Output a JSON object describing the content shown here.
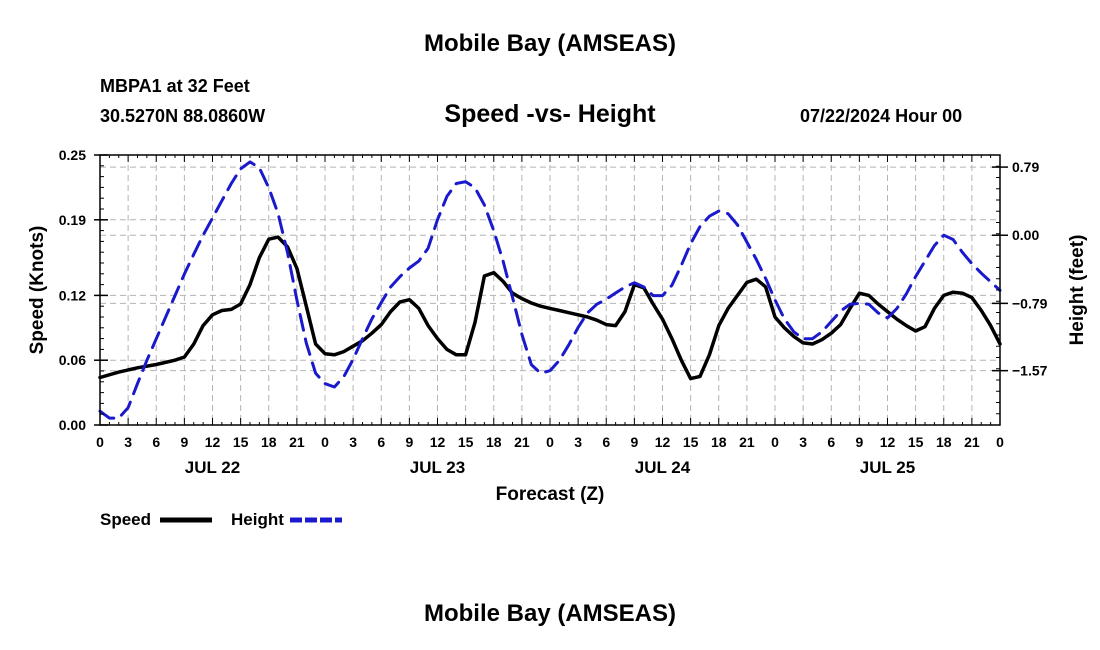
{
  "header": {
    "title": "Mobile Bay (AMSEAS)",
    "station": "MBPA1 at 32 Feet",
    "coords": "30.5270N  88.0860W",
    "subtitle": "Speed -vs- Height",
    "datetime": "07/22/2024 Hour 00"
  },
  "footer": {
    "title": "Mobile Bay (AMSEAS)"
  },
  "chart_data": {
    "type": "line",
    "title": "Speed -vs- Height",
    "xlabel": "Forecast (Z)",
    "ylabel": "Speed (Knots)",
    "y2label": "Height (feet)",
    "xlim": [
      0,
      96
    ],
    "ylim": [
      0,
      0.25
    ],
    "y2lim": [
      -2.2,
      0.93
    ],
    "grid": true,
    "x_ticks": [
      0,
      3,
      6,
      9,
      12,
      15,
      18,
      21,
      24,
      27,
      30,
      33,
      36,
      39,
      42,
      45,
      48,
      51,
      54,
      57,
      60,
      63,
      66,
      69,
      72,
      75,
      78,
      81,
      84,
      87,
      90,
      93,
      96
    ],
    "x_tick_labels": [
      "0",
      "3",
      "6",
      "9",
      "12",
      "15",
      "18",
      "21",
      "0",
      "3",
      "6",
      "9",
      "12",
      "15",
      "18",
      "21",
      "0",
      "3",
      "6",
      "9",
      "12",
      "15",
      "18",
      "21",
      "0",
      "3",
      "6",
      "9",
      "12",
      "15",
      "18",
      "21",
      "0"
    ],
    "date_labels": [
      {
        "hour": 12,
        "label": "JUL 22"
      },
      {
        "hour": 36,
        "label": "JUL 23"
      },
      {
        "hour": 60,
        "label": "JUL 24"
      },
      {
        "hour": 84,
        "label": "JUL 25"
      }
    ],
    "y_ticks": [
      0.0,
      0.06,
      0.12,
      0.19,
      0.25
    ],
    "y_tick_labels": [
      "0.00",
      "0.06",
      "0.12",
      "0.19",
      "0.25"
    ],
    "y2_ticks": [
      0.79,
      0.0,
      -0.79,
      -1.57
    ],
    "y2_tick_labels": [
      "0.79",
      "0.00",
      "−0.79",
      "−1.57"
    ],
    "legend": [
      {
        "name": "Speed",
        "color": "#000000",
        "style": "solid"
      },
      {
        "name": "Height",
        "color": "#1a1acc",
        "style": "dashed"
      }
    ],
    "series": [
      {
        "name": "Speed",
        "axis": "left",
        "color": "#000000",
        "points": [
          [
            0,
            0.044
          ],
          [
            2,
            0.049
          ],
          [
            4,
            0.053
          ],
          [
            6,
            0.056
          ],
          [
            8,
            0.06
          ],
          [
            9,
            0.063
          ],
          [
            10,
            0.075
          ],
          [
            11,
            0.092
          ],
          [
            12,
            0.102
          ],
          [
            13,
            0.106
          ],
          [
            14,
            0.107
          ],
          [
            15,
            0.112
          ],
          [
            16,
            0.13
          ],
          [
            17,
            0.155
          ],
          [
            18,
            0.172
          ],
          [
            19,
            0.174
          ],
          [
            20,
            0.165
          ],
          [
            21,
            0.145
          ],
          [
            22,
            0.11
          ],
          [
            23,
            0.075
          ],
          [
            24,
            0.066
          ],
          [
            25,
            0.065
          ],
          [
            26,
            0.068
          ],
          [
            27,
            0.073
          ],
          [
            28,
            0.078
          ],
          [
            29,
            0.085
          ],
          [
            30,
            0.093
          ],
          [
            31,
            0.105
          ],
          [
            32,
            0.114
          ],
          [
            33,
            0.116
          ],
          [
            34,
            0.108
          ],
          [
            35,
            0.092
          ],
          [
            36,
            0.08
          ],
          [
            37,
            0.07
          ],
          [
            38,
            0.065
          ],
          [
            39,
            0.065
          ],
          [
            40,
            0.095
          ],
          [
            41,
            0.138
          ],
          [
            42,
            0.141
          ],
          [
            43,
            0.133
          ],
          [
            44,
            0.122
          ],
          [
            45,
            0.117
          ],
          [
            46,
            0.113
          ],
          [
            47,
            0.11
          ],
          [
            48,
            0.108
          ],
          [
            49,
            0.106
          ],
          [
            50,
            0.104
          ],
          [
            51,
            0.102
          ],
          [
            52,
            0.1
          ],
          [
            53,
            0.097
          ],
          [
            54,
            0.093
          ],
          [
            55,
            0.092
          ],
          [
            56,
            0.105
          ],
          [
            57,
            0.13
          ],
          [
            58,
            0.127
          ],
          [
            59,
            0.112
          ],
          [
            60,
            0.098
          ],
          [
            61,
            0.08
          ],
          [
            62,
            0.06
          ],
          [
            63,
            0.043
          ],
          [
            64,
            0.045
          ],
          [
            65,
            0.065
          ],
          [
            66,
            0.092
          ],
          [
            67,
            0.108
          ],
          [
            68,
            0.12
          ],
          [
            69,
            0.132
          ],
          [
            70,
            0.135
          ],
          [
            71,
            0.128
          ],
          [
            72,
            0.1
          ],
          [
            73,
            0.09
          ],
          [
            74,
            0.082
          ],
          [
            75,
            0.076
          ],
          [
            76,
            0.075
          ],
          [
            77,
            0.079
          ],
          [
            78,
            0.085
          ],
          [
            79,
            0.093
          ],
          [
            80,
            0.108
          ],
          [
            81,
            0.122
          ],
          [
            82,
            0.12
          ],
          [
            83,
            0.112
          ],
          [
            84,
            0.105
          ],
          [
            85,
            0.098
          ],
          [
            86,
            0.092
          ],
          [
            87,
            0.087
          ],
          [
            88,
            0.091
          ],
          [
            89,
            0.108
          ],
          [
            90,
            0.12
          ],
          [
            91,
            0.123
          ],
          [
            92,
            0.122
          ],
          [
            93,
            0.118
          ],
          [
            94,
            0.106
          ],
          [
            95,
            0.092
          ],
          [
            96,
            0.075
          ]
        ]
      },
      {
        "name": "Height",
        "axis": "right",
        "color": "#1a1acc",
        "points": [
          [
            0,
            -2.04
          ],
          [
            1,
            -2.12
          ],
          [
            2,
            -2.12
          ],
          [
            3,
            -2.0
          ],
          [
            4,
            -1.72
          ],
          [
            5,
            -1.45
          ],
          [
            6,
            -1.2
          ],
          [
            7,
            -0.95
          ],
          [
            8,
            -0.7
          ],
          [
            9,
            -0.45
          ],
          [
            10,
            -0.22
          ],
          [
            11,
            0.0
          ],
          [
            12,
            0.2
          ],
          [
            13,
            0.4
          ],
          [
            14,
            0.6
          ],
          [
            15,
            0.77
          ],
          [
            16,
            0.85
          ],
          [
            17,
            0.78
          ],
          [
            18,
            0.55
          ],
          [
            19,
            0.25
          ],
          [
            20,
            -0.2
          ],
          [
            21,
            -0.75
          ],
          [
            22,
            -1.25
          ],
          [
            23,
            -1.6
          ],
          [
            24,
            -1.72
          ],
          [
            25,
            -1.76
          ],
          [
            26,
            -1.64
          ],
          [
            27,
            -1.44
          ],
          [
            28,
            -1.2
          ],
          [
            29,
            -0.97
          ],
          [
            30,
            -0.78
          ],
          [
            31,
            -0.6
          ],
          [
            32,
            -0.48
          ],
          [
            33,
            -0.38
          ],
          [
            34,
            -0.3
          ],
          [
            35,
            -0.15
          ],
          [
            36,
            0.18
          ],
          [
            37,
            0.45
          ],
          [
            38,
            0.6
          ],
          [
            39,
            0.62
          ],
          [
            40,
            0.55
          ],
          [
            41,
            0.35
          ],
          [
            42,
            0.05
          ],
          [
            43,
            -0.3
          ],
          [
            44,
            -0.72
          ],
          [
            45,
            -1.15
          ],
          [
            46,
            -1.5
          ],
          [
            47,
            -1.6
          ],
          [
            48,
            -1.57
          ],
          [
            49,
            -1.45
          ],
          [
            50,
            -1.27
          ],
          [
            51,
            -1.07
          ],
          [
            52,
            -0.9
          ],
          [
            53,
            -0.8
          ],
          [
            54,
            -0.74
          ],
          [
            55,
            -0.67
          ],
          [
            56,
            -0.6
          ],
          [
            57,
            -0.55
          ],
          [
            58,
            -0.6
          ],
          [
            59,
            -0.7
          ],
          [
            60,
            -0.7
          ],
          [
            61,
            -0.58
          ],
          [
            62,
            -0.35
          ],
          [
            63,
            -0.1
          ],
          [
            64,
            0.1
          ],
          [
            65,
            0.22
          ],
          [
            66,
            0.28
          ],
          [
            67,
            0.25
          ],
          [
            68,
            0.12
          ],
          [
            69,
            -0.08
          ],
          [
            70,
            -0.28
          ],
          [
            71,
            -0.5
          ],
          [
            72,
            -0.75
          ],
          [
            73,
            -0.97
          ],
          [
            74,
            -1.12
          ],
          [
            75,
            -1.2
          ],
          [
            76,
            -1.2
          ],
          [
            77,
            -1.12
          ],
          [
            78,
            -1.0
          ],
          [
            79,
            -0.88
          ],
          [
            80,
            -0.8
          ],
          [
            81,
            -0.79
          ],
          [
            82,
            -0.8
          ],
          [
            83,
            -0.9
          ],
          [
            84,
            -0.96
          ],
          [
            85,
            -0.85
          ],
          [
            86,
            -0.68
          ],
          [
            87,
            -0.48
          ],
          [
            88,
            -0.3
          ],
          [
            89,
            -0.12
          ],
          [
            90,
            0.0
          ],
          [
            91,
            -0.05
          ],
          [
            92,
            -0.2
          ],
          [
            93,
            -0.33
          ],
          [
            94,
            -0.44
          ],
          [
            95,
            -0.54
          ],
          [
            96,
            -0.64
          ]
        ]
      }
    ]
  }
}
